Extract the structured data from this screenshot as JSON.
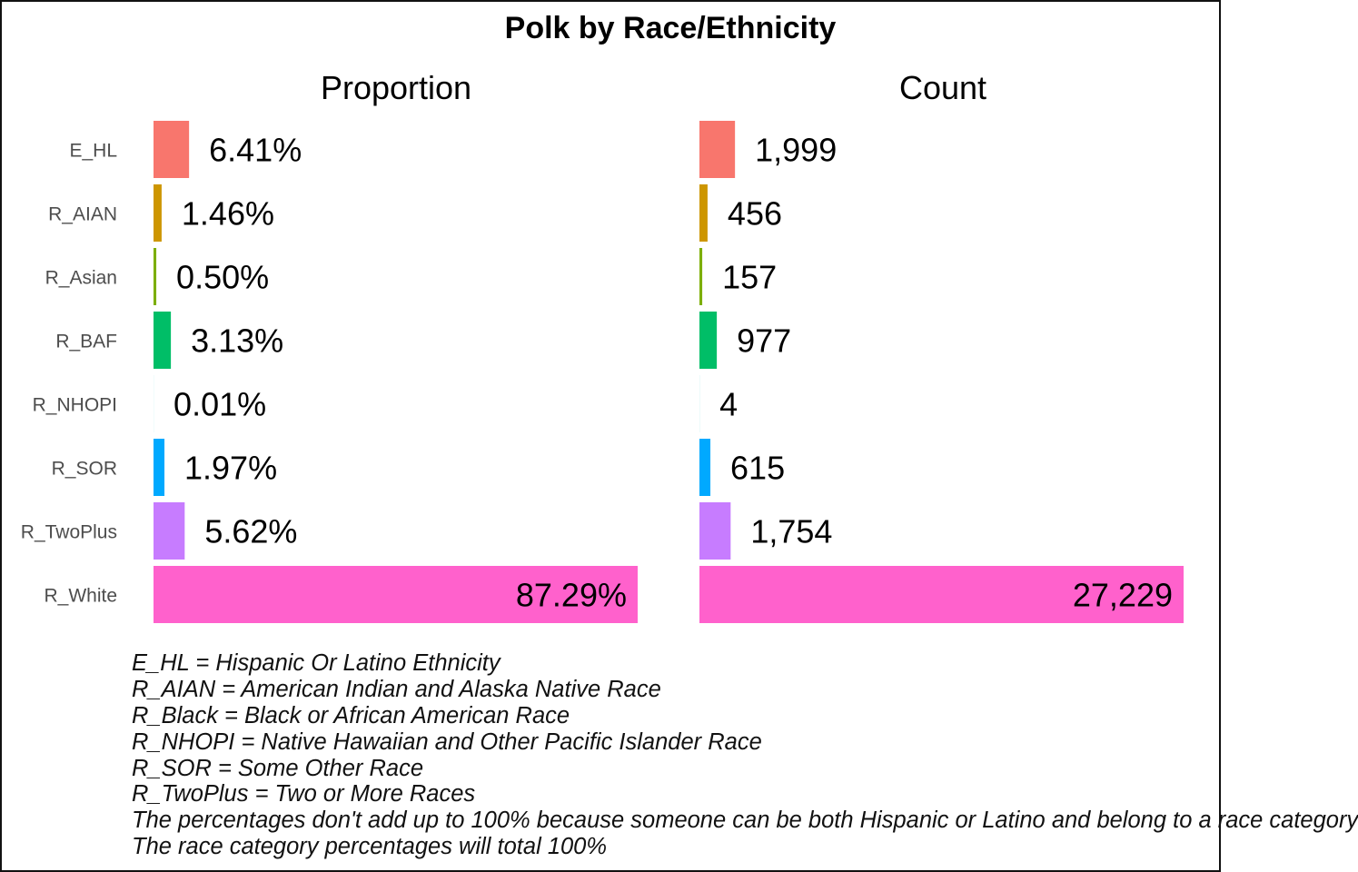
{
  "chart_data": {
    "type": "bar",
    "orientation": "horizontal",
    "title": "Polk by Race/Ethnicity",
    "categories": [
      "E_HL",
      "R_AIAN",
      "R_Asian",
      "R_BAF",
      "R_NHOPI",
      "R_SOR",
      "R_TwoPlus",
      "R_White"
    ],
    "colors": [
      "#F8766D",
      "#CD9600",
      "#7CAE00",
      "#00BE67",
      "#00BFC4",
      "#00A9FF",
      "#C77CFF",
      "#FF61CC"
    ],
    "panels": [
      {
        "title": "Proportion",
        "values": [
          6.41,
          1.46,
          0.5,
          3.13,
          0.01,
          1.97,
          5.62,
          87.29
        ],
        "labels": [
          "6.41%",
          "1.46%",
          "0.50%",
          "3.13%",
          "0.01%",
          "1.97%",
          "5.62%",
          "87.29%"
        ],
        "xlim": [
          0,
          87.29
        ]
      },
      {
        "title": "Count",
        "values": [
          1999,
          456,
          157,
          977,
          4,
          615,
          1754,
          27229
        ],
        "labels": [
          "1,999",
          "456",
          "157",
          "977",
          "4",
          "615",
          "1,754",
          "27,229"
        ],
        "xlim": [
          0,
          27229
        ]
      }
    ],
    "grid": false,
    "legend": "none"
  },
  "footnotes": [
    "E_HL = Hispanic Or Latino Ethnicity",
    "R_AIAN = American Indian and Alaska Native Race",
    "R_Black = Black or African American Race",
    "R_NHOPI = Native Hawaiian and Other Pacific Islander Race",
    "R_SOR = Some Other Race",
    "R_TwoPlus = Two or More Races",
    "The percentages don't add up to 100% because someone can be both Hispanic or Latino and belong to a race category",
    "The race category percentages will total 100%"
  ]
}
